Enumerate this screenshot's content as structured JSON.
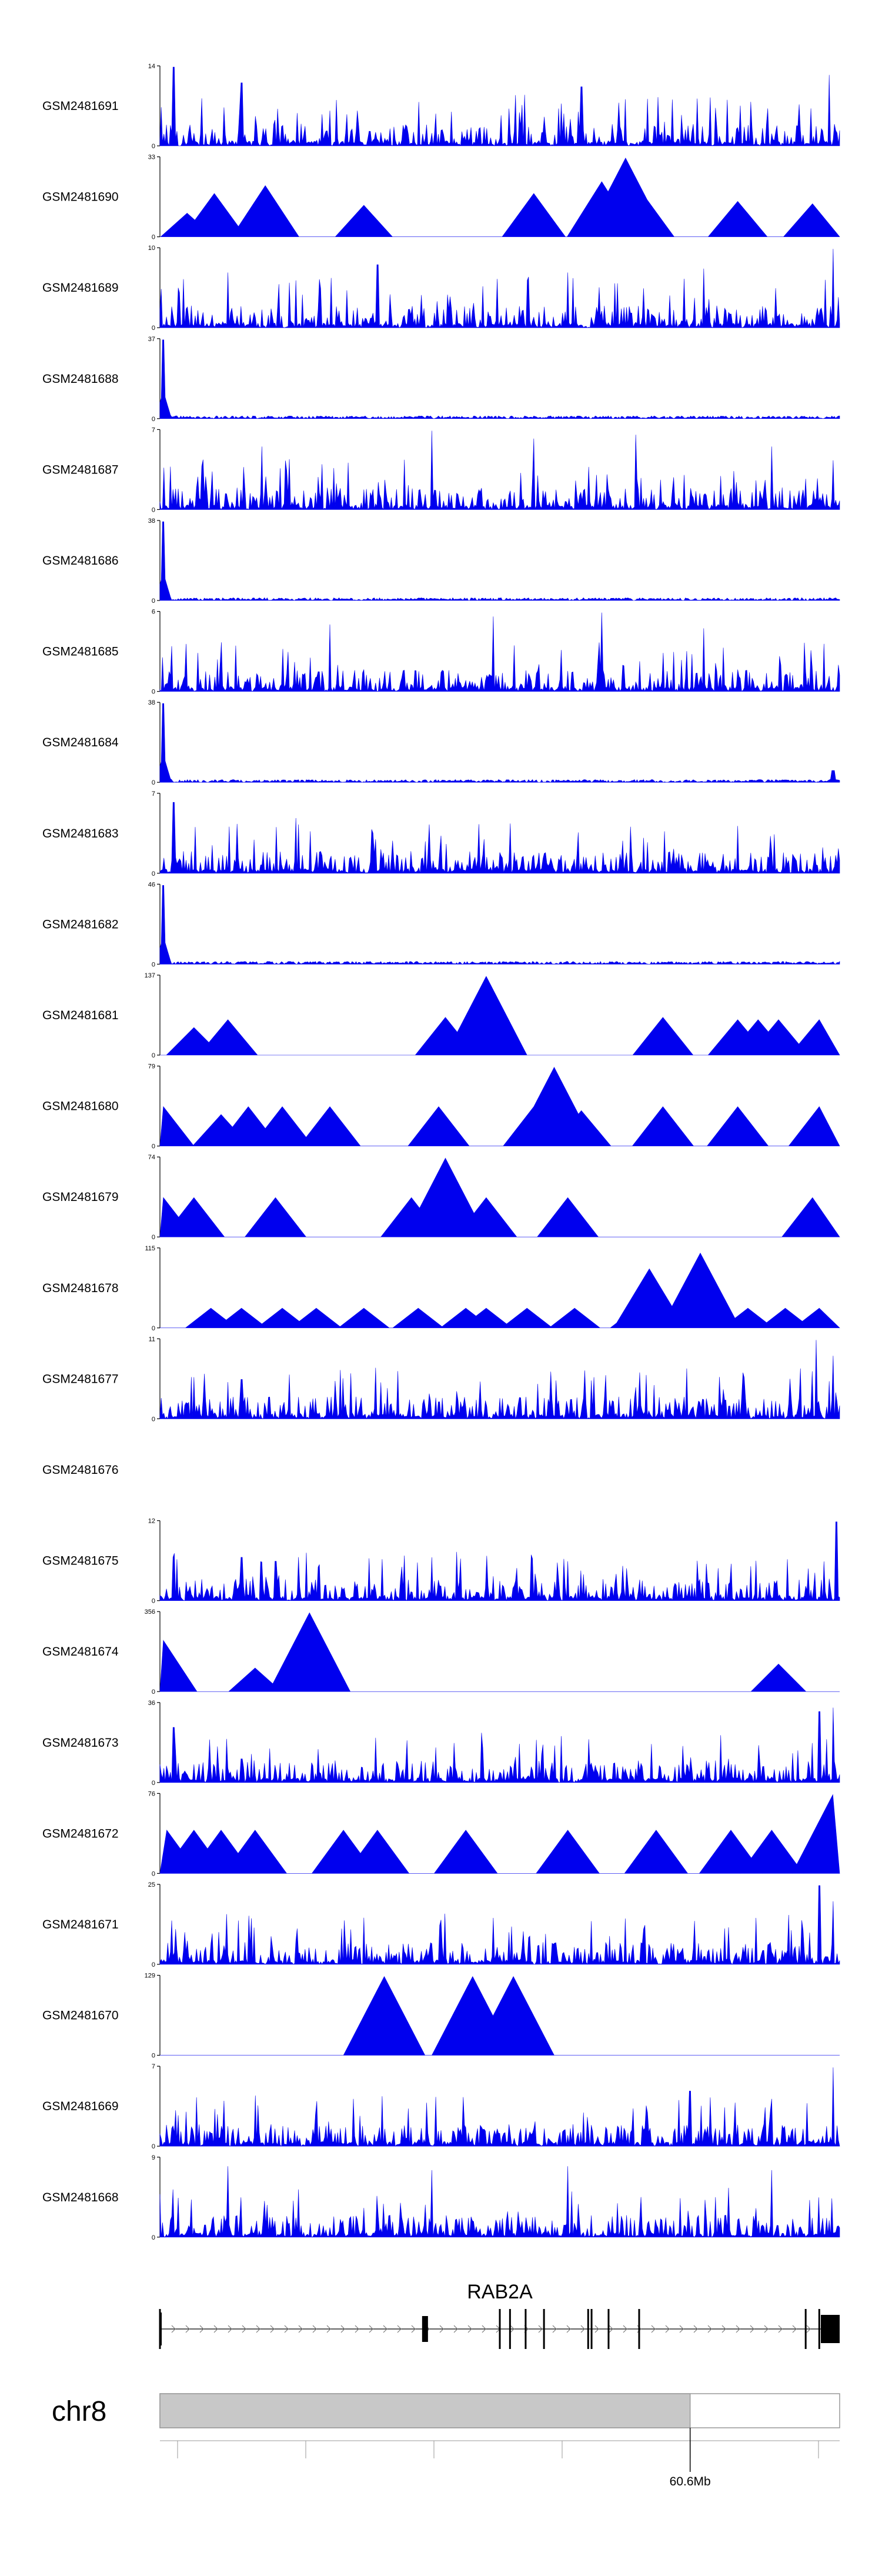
{
  "colors": {
    "track": "#0000EE",
    "axis": "#000000",
    "ideogram": "#C8C8C8",
    "gene": "#000000"
  },
  "chart_data": {
    "type": "area",
    "tracks": [
      {
        "name": "GSM2481691",
        "ymax": "14",
        "ymin": "0",
        "pattern": "dense",
        "peaks": [
          [
            0.02,
            1.0
          ],
          [
            0.12,
            0.8
          ],
          [
            0.62,
            0.75
          ],
          [
            0.79,
            0.6
          ],
          [
            0.985,
            0.9
          ]
        ]
      },
      {
        "name": "GSM2481690",
        "ymax": "33",
        "ymin": "0",
        "pattern": "sparse",
        "peaks": [
          [
            0.04,
            0.3
          ],
          [
            0.08,
            0.55
          ],
          [
            0.155,
            0.65
          ],
          [
            0.3,
            0.4
          ],
          [
            0.55,
            0.55
          ],
          [
            0.65,
            0.7
          ],
          [
            0.685,
            1.0
          ],
          [
            0.71,
            0.55
          ],
          [
            0.85,
            0.45
          ],
          [
            0.96,
            0.42
          ]
        ]
      },
      {
        "name": "GSM2481689",
        "ymax": "10",
        "ymin": "0",
        "pattern": "dense",
        "peaks": [
          [
            0.1,
            0.7
          ],
          [
            0.2,
            0.6
          ],
          [
            0.32,
            0.8
          ],
          [
            0.6,
            0.7
          ],
          [
            0.8,
            0.75
          ],
          [
            0.99,
            1.0
          ]
        ]
      },
      {
        "name": "GSM2481688",
        "ymax": "37",
        "ymin": "0",
        "pattern": "spike",
        "peaks": [
          [
            0.005,
            1.0
          ]
        ]
      },
      {
        "name": "GSM2481687",
        "ymax": "7",
        "ymin": "0",
        "pattern": "dense",
        "peaks": [
          [
            0.15,
            0.8
          ],
          [
            0.4,
            1.0
          ],
          [
            0.55,
            0.9
          ],
          [
            0.7,
            0.95
          ],
          [
            0.9,
            0.8
          ]
        ]
      },
      {
        "name": "GSM2481686",
        "ymax": "38",
        "ymin": "0",
        "pattern": "spike",
        "peaks": [
          [
            0.005,
            1.0
          ]
        ]
      },
      {
        "name": "GSM2481685",
        "ymax": "6",
        "ymin": "0",
        "pattern": "dense",
        "peaks": [
          [
            0.25,
            0.85
          ],
          [
            0.49,
            0.95
          ],
          [
            0.65,
            1.0
          ],
          [
            0.8,
            0.8
          ]
        ]
      },
      {
        "name": "GSM2481684",
        "ymax": "38",
        "ymin": "0",
        "pattern": "spike",
        "peaks": [
          [
            0.005,
            1.0
          ],
          [
            0.99,
            0.15
          ]
        ]
      },
      {
        "name": "GSM2481683",
        "ymax": "7",
        "ymin": "0",
        "pattern": "dense",
        "peaks": [
          [
            0.02,
            0.9
          ],
          [
            0.2,
            0.7
          ],
          [
            0.85,
            0.6
          ]
        ]
      },
      {
        "name": "GSM2481682",
        "ymax": "46",
        "ymin": "0",
        "pattern": "spike",
        "peaks": [
          [
            0.005,
            1.0
          ]
        ]
      },
      {
        "name": "GSM2481681",
        "ymax": "137",
        "ymin": "0",
        "pattern": "sparse",
        "peaks": [
          [
            0.05,
            0.35
          ],
          [
            0.1,
            0.45
          ],
          [
            0.42,
            0.48
          ],
          [
            0.46,
            0.45
          ],
          [
            0.48,
            1.0
          ],
          [
            0.74,
            0.48
          ],
          [
            0.85,
            0.45
          ],
          [
            0.88,
            0.45
          ],
          [
            0.91,
            0.45
          ],
          [
            0.97,
            0.45
          ]
        ]
      },
      {
        "name": "GSM2481680",
        "ymax": "79",
        "ymin": "0",
        "pattern": "sparse",
        "peaks": [
          [
            0.005,
            0.5
          ],
          [
            0.09,
            0.4
          ],
          [
            0.13,
            0.5
          ],
          [
            0.18,
            0.5
          ],
          [
            0.25,
            0.5
          ],
          [
            0.41,
            0.5
          ],
          [
            0.55,
            0.5
          ],
          [
            0.58,
            1.0
          ],
          [
            0.62,
            0.45
          ],
          [
            0.74,
            0.5
          ],
          [
            0.85,
            0.5
          ],
          [
            0.97,
            0.5
          ]
        ]
      },
      {
        "name": "GSM2481679",
        "ymax": "74",
        "ymin": "0",
        "pattern": "sparse",
        "peaks": [
          [
            0.005,
            0.5
          ],
          [
            0.05,
            0.5
          ],
          [
            0.17,
            0.5
          ],
          [
            0.37,
            0.5
          ],
          [
            0.41,
            0.5
          ],
          [
            0.42,
            1.0
          ],
          [
            0.48,
            0.5
          ],
          [
            0.6,
            0.5
          ],
          [
            0.96,
            0.5
          ]
        ]
      },
      {
        "name": "GSM2481678",
        "ymax": "115",
        "ymin": "0",
        "pattern": "sparse",
        "peaks": [
          [
            0.075,
            0.25
          ],
          [
            0.12,
            0.25
          ],
          [
            0.18,
            0.25
          ],
          [
            0.23,
            0.25
          ],
          [
            0.3,
            0.25
          ],
          [
            0.38,
            0.25
          ],
          [
            0.45,
            0.25
          ],
          [
            0.48,
            0.25
          ],
          [
            0.54,
            0.25
          ],
          [
            0.61,
            0.25
          ],
          [
            0.7,
            0.25
          ],
          [
            0.72,
            0.75
          ],
          [
            0.795,
            0.95
          ],
          [
            0.865,
            0.25
          ],
          [
            0.92,
            0.25
          ],
          [
            0.97,
            0.25
          ]
        ]
      },
      {
        "name": "GSM2481677",
        "ymax": "11",
        "ymin": "0",
        "pattern": "dense",
        "peaks": [
          [
            0.12,
            0.5
          ],
          [
            0.7,
            0.4
          ],
          [
            0.965,
            1.0
          ],
          [
            0.99,
            0.8
          ]
        ]
      },
      {
        "name": "GSM2481676",
        "ymax": "",
        "ymin": "",
        "pattern": "empty",
        "peaks": []
      },
      {
        "name": "GSM2481675",
        "ymax": "12",
        "ymin": "0",
        "pattern": "dense",
        "peaks": [
          [
            0.02,
            0.55
          ],
          [
            0.12,
            0.55
          ],
          [
            0.17,
            0.5
          ],
          [
            0.4,
            0.55
          ],
          [
            0.6,
            0.5
          ],
          [
            0.995,
            1.0
          ]
        ]
      },
      {
        "name": "GSM2481674",
        "ymax": "356",
        "ymin": "0",
        "pattern": "sparse",
        "peaks": [
          [
            0.005,
            0.65
          ],
          [
            0.14,
            0.3
          ],
          [
            0.22,
            1.0
          ],
          [
            0.91,
            0.35
          ]
        ]
      },
      {
        "name": "GSM2481673",
        "ymax": "36",
        "ymin": "0",
        "pattern": "dense",
        "peaks": [
          [
            0.02,
            0.7
          ],
          [
            0.12,
            0.3
          ],
          [
            0.97,
            0.9
          ],
          [
            0.99,
            0.95
          ]
        ]
      },
      {
        "name": "GSM2481672",
        "ymax": "76",
        "ymin": "0",
        "pattern": "sparse",
        "peaks": [
          [
            0.01,
            0.55
          ],
          [
            0.05,
            0.55
          ],
          [
            0.09,
            0.55
          ],
          [
            0.14,
            0.55
          ],
          [
            0.27,
            0.55
          ],
          [
            0.32,
            0.55
          ],
          [
            0.45,
            0.55
          ],
          [
            0.6,
            0.55
          ],
          [
            0.73,
            0.55
          ],
          [
            0.84,
            0.55
          ],
          [
            0.9,
            0.55
          ],
          [
            0.99,
            1.0
          ]
        ]
      },
      {
        "name": "GSM2481671",
        "ymax": "25",
        "ymin": "0",
        "pattern": "dense",
        "peaks": [
          [
            0.04,
            0.3
          ],
          [
            0.2,
            0.3
          ],
          [
            0.97,
            1.0
          ],
          [
            0.99,
            0.8
          ]
        ]
      },
      {
        "name": "GSM2481670",
        "ymax": "129",
        "ymin": "0",
        "pattern": "sparse",
        "peaks": [
          [
            0.33,
            1.0
          ],
          [
            0.46,
            1.0
          ],
          [
            0.52,
            1.0
          ]
        ]
      },
      {
        "name": "GSM2481669",
        "ymax": "7",
        "ymin": "0",
        "pattern": "dense",
        "peaks": [
          [
            0.78,
            0.7
          ],
          [
            0.9,
            0.6
          ],
          [
            0.99,
            1.0
          ]
        ]
      },
      {
        "name": "GSM2481668",
        "ymax": "9",
        "ymin": "0",
        "pattern": "dense",
        "peaks": [
          [
            0.1,
            0.9
          ],
          [
            0.4,
            0.85
          ],
          [
            0.6,
            0.9
          ],
          [
            0.9,
            0.85
          ]
        ]
      }
    ],
    "gene": {
      "name": "RAB2A",
      "strand": "+",
      "exons": [
        0.0,
        0.39,
        0.5,
        0.515,
        0.538,
        0.565,
        0.63,
        0.635,
        0.66,
        0.705,
        0.95,
        0.97
      ]
    },
    "chromosome": {
      "name": "chr8",
      "position_label": "60.6Mb",
      "label_fraction": 0.78
    }
  }
}
